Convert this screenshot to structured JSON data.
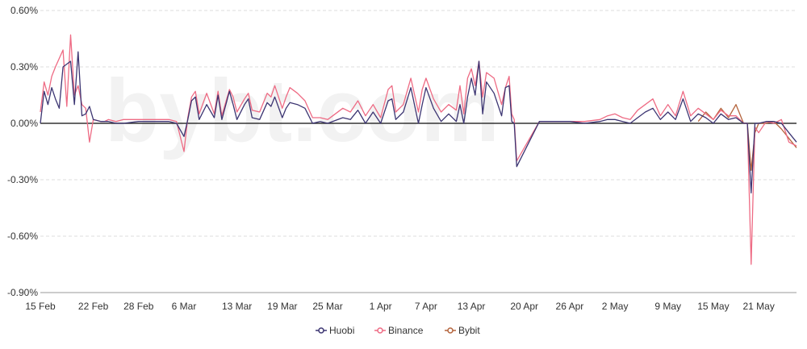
{
  "colors": {
    "Huobi": "#3c3572",
    "Binance": "#ee6b84",
    "Bybit": "#b4643c",
    "grid": "#dddddd",
    "zero_line": "#333333"
  },
  "watermark": "bybt.com",
  "chart_data": {
    "type": "line",
    "title": "",
    "xlabel": "",
    "ylabel": "",
    "ylim": [
      -0.9,
      0.6
    ],
    "yticks": [
      0.6,
      0.3,
      0.0,
      -0.3,
      -0.6,
      -0.9
    ],
    "ytick_labels": [
      "0.60%",
      "0.30%",
      "0.00%",
      "-0.30%",
      "-0.60%",
      "-0.90%"
    ],
    "xlim": [
      "2021-02-15",
      "2021-05-26"
    ],
    "xtick_labels": [
      "15 Feb",
      "22 Feb",
      "28 Feb",
      "6 Mar",
      "13 Mar",
      "19 Mar",
      "25 Mar",
      "1 Apr",
      "7 Apr",
      "13 Apr",
      "20 Apr",
      "26 Apr",
      "2 May",
      "9 May",
      "15 May",
      "21 May"
    ],
    "xtick_dates": [
      "2021-02-15",
      "2021-02-22",
      "2021-02-28",
      "2021-03-06",
      "2021-03-13",
      "2021-03-19",
      "2021-03-25",
      "2021-04-01",
      "2021-04-07",
      "2021-04-13",
      "2021-04-20",
      "2021-04-26",
      "2021-05-02",
      "2021-05-09",
      "2021-05-15",
      "2021-05-21"
    ],
    "grid": true,
    "legend_position": "bottom-center",
    "series": [
      {
        "name": "Huobi",
        "x": [
          "2021-02-15",
          "2021-02-15",
          "2021-02-16",
          "2021-02-16",
          "2021-02-17",
          "2021-02-17",
          "2021-02-18",
          "2021-02-19",
          "2021-02-19",
          "2021-02-20",
          "2021-02-20",
          "2021-02-21",
          "2021-02-21",
          "2021-02-22",
          "2021-02-23",
          "2021-02-23",
          "2021-02-24",
          "2021-02-25",
          "2021-02-26",
          "2021-02-28",
          "2021-03-02",
          "2021-03-04",
          "2021-03-05",
          "2021-03-06",
          "2021-03-06",
          "2021-03-07",
          "2021-03-07",
          "2021-03-08",
          "2021-03-09",
          "2021-03-10",
          "2021-03-10",
          "2021-03-11",
          "2021-03-12",
          "2021-03-12",
          "2021-03-13",
          "2021-03-14",
          "2021-03-14",
          "2021-03-15",
          "2021-03-16",
          "2021-03-17",
          "2021-03-17",
          "2021-03-18",
          "2021-03-19",
          "2021-03-19",
          "2021-03-20",
          "2021-03-21",
          "2021-03-22",
          "2021-03-23",
          "2021-03-24",
          "2021-03-25",
          "2021-03-27",
          "2021-03-28",
          "2021-03-29",
          "2021-03-30",
          "2021-03-31",
          "2021-04-01",
          "2021-04-02",
          "2021-04-02",
          "2021-04-03",
          "2021-04-04",
          "2021-04-05",
          "2021-04-06",
          "2021-04-06",
          "2021-04-07",
          "2021-04-08",
          "2021-04-09",
          "2021-04-10",
          "2021-04-11",
          "2021-04-11",
          "2021-04-12",
          "2021-04-12",
          "2021-04-13",
          "2021-04-13",
          "2021-04-14",
          "2021-04-14",
          "2021-04-15",
          "2021-04-16",
          "2021-04-17",
          "2021-04-17",
          "2021-04-18",
          "2021-04-18",
          "2021-04-18",
          "2021-04-19",
          "2021-04-22",
          "2021-04-26",
          "2021-04-28",
          "2021-04-30",
          "2021-05-01",
          "2021-05-02",
          "2021-05-03",
          "2021-05-04",
          "2021-05-05",
          "2021-05-06",
          "2021-05-07",
          "2021-05-08",
          "2021-05-09",
          "2021-05-10",
          "2021-05-11",
          "2021-05-12",
          "2021-05-13",
          "2021-05-14",
          "2021-05-15",
          "2021-05-16",
          "2021-05-17",
          "2021-05-18",
          "2021-05-19",
          "2021-05-19",
          "2021-05-20",
          "2021-05-20",
          "2021-05-21",
          "2021-05-22",
          "2021-05-23",
          "2021-05-24",
          "2021-05-25",
          "2021-05-26"
        ],
        "values": [
          0.0,
          0.17,
          0.1,
          0.19,
          0.13,
          0.08,
          0.3,
          0.33,
          0.1,
          0.38,
          0.04,
          0.05,
          0.09,
          0.02,
          0.01,
          0.01,
          0.01,
          0.0,
          0.0,
          0.01,
          0.01,
          0.01,
          0.0,
          -0.07,
          0.02,
          0.12,
          0.14,
          0.02,
          0.1,
          0.03,
          0.15,
          0.02,
          0.17,
          0.1,
          0.02,
          0.1,
          0.13,
          0.03,
          0.02,
          0.11,
          0.09,
          0.14,
          0.03,
          0.08,
          0.11,
          0.1,
          0.08,
          0.0,
          0.01,
          0.0,
          0.03,
          0.02,
          0.07,
          0.0,
          0.06,
          0.0,
          0.12,
          0.13,
          0.02,
          0.06,
          0.19,
          0.0,
          0.1,
          0.19,
          0.08,
          0.01,
          0.05,
          0.01,
          0.1,
          0.0,
          0.14,
          0.24,
          0.15,
          0.33,
          0.05,
          0.22,
          0.16,
          0.04,
          0.19,
          0.2,
          0.01,
          0.0,
          -0.23,
          0.01,
          0.01,
          0.0,
          0.01,
          0.02,
          0.02,
          0.01,
          0.0,
          0.03,
          0.06,
          0.08,
          0.02,
          0.06,
          0.02,
          0.13,
          0.01,
          0.05,
          0.03,
          0.0,
          0.05,
          0.02,
          0.03,
          0.0,
          0.0,
          -0.37,
          0.0,
          0.0,
          0.01,
          0.01,
          0.0,
          -0.05,
          -0.1
        ]
      },
      {
        "name": "Binance",
        "x": [
          "2021-02-15",
          "2021-02-15",
          "2021-02-16",
          "2021-02-16",
          "2021-02-17",
          "2021-02-18",
          "2021-02-18",
          "2021-02-19",
          "2021-02-19",
          "2021-02-20",
          "2021-02-20",
          "2021-02-21",
          "2021-02-21",
          "2021-02-22",
          "2021-02-23",
          "2021-02-23",
          "2021-02-24",
          "2021-02-25",
          "2021-02-26",
          "2021-02-28",
          "2021-03-02",
          "2021-03-04",
          "2021-03-05",
          "2021-03-06",
          "2021-03-06",
          "2021-03-07",
          "2021-03-07",
          "2021-03-08",
          "2021-03-09",
          "2021-03-10",
          "2021-03-10",
          "2021-03-11",
          "2021-03-12",
          "2021-03-12",
          "2021-03-13",
          "2021-03-14",
          "2021-03-14",
          "2021-03-15",
          "2021-03-16",
          "2021-03-17",
          "2021-03-17",
          "2021-03-18",
          "2021-03-19",
          "2021-03-19",
          "2021-03-20",
          "2021-03-21",
          "2021-03-22",
          "2021-03-23",
          "2021-03-24",
          "2021-03-25",
          "2021-03-27",
          "2021-03-28",
          "2021-03-29",
          "2021-03-30",
          "2021-03-31",
          "2021-04-01",
          "2021-04-02",
          "2021-04-02",
          "2021-04-03",
          "2021-04-04",
          "2021-04-05",
          "2021-04-06",
          "2021-04-06",
          "2021-04-07",
          "2021-04-08",
          "2021-04-09",
          "2021-04-10",
          "2021-04-11",
          "2021-04-11",
          "2021-04-12",
          "2021-04-12",
          "2021-04-13",
          "2021-04-13",
          "2021-04-14",
          "2021-04-14",
          "2021-04-15",
          "2021-04-16",
          "2021-04-17",
          "2021-04-17",
          "2021-04-18",
          "2021-04-18",
          "2021-04-18",
          "2021-04-19",
          "2021-04-22",
          "2021-04-26",
          "2021-04-28",
          "2021-04-30",
          "2021-05-01",
          "2021-05-02",
          "2021-05-03",
          "2021-05-04",
          "2021-05-05",
          "2021-05-06",
          "2021-05-07",
          "2021-05-08",
          "2021-05-09",
          "2021-05-10",
          "2021-05-11",
          "2021-05-12",
          "2021-05-13",
          "2021-05-14",
          "2021-05-15",
          "2021-05-16",
          "2021-05-17",
          "2021-05-18",
          "2021-05-19",
          "2021-05-19",
          "2021-05-20",
          "2021-05-20",
          "2021-05-21",
          "2021-05-22",
          "2021-05-23",
          "2021-05-24",
          "2021-05-25",
          "2021-05-26"
        ],
        "values": [
          0.06,
          0.22,
          0.15,
          0.25,
          0.3,
          0.39,
          0.09,
          0.47,
          0.15,
          0.2,
          0.1,
          0.08,
          -0.1,
          0.02,
          0.01,
          0.01,
          0.02,
          0.01,
          0.02,
          0.02,
          0.02,
          0.02,
          0.01,
          -0.15,
          0.03,
          0.14,
          0.17,
          0.05,
          0.16,
          0.05,
          0.17,
          0.04,
          0.18,
          0.14,
          0.06,
          0.13,
          0.16,
          0.07,
          0.06,
          0.16,
          0.14,
          0.2,
          0.08,
          0.14,
          0.19,
          0.16,
          0.12,
          0.03,
          0.03,
          0.02,
          0.08,
          0.06,
          0.12,
          0.04,
          0.1,
          0.03,
          0.18,
          0.2,
          0.06,
          0.1,
          0.24,
          0.06,
          0.18,
          0.24,
          0.13,
          0.06,
          0.1,
          0.07,
          0.2,
          0.05,
          0.24,
          0.29,
          0.2,
          0.33,
          0.14,
          0.27,
          0.24,
          0.1,
          0.19,
          0.25,
          0.05,
          0.02,
          -0.2,
          0.01,
          0.01,
          0.01,
          0.02,
          0.04,
          0.05,
          0.03,
          0.02,
          0.07,
          0.1,
          0.13,
          0.04,
          0.1,
          0.04,
          0.17,
          0.04,
          0.08,
          0.05,
          0.02,
          0.07,
          0.04,
          0.04,
          0.0,
          0.0,
          -0.75,
          -0.02,
          -0.05,
          0.01,
          0.0,
          0.02,
          -0.1,
          -0.12
        ]
      },
      {
        "name": "Bybit",
        "x": [
          "2021-05-13",
          "2021-05-14",
          "2021-05-15",
          "2021-05-16",
          "2021-05-17",
          "2021-05-18",
          "2021-05-19",
          "2021-05-19",
          "2021-05-20",
          "2021-05-20",
          "2021-05-21",
          "2021-05-22",
          "2021-05-23",
          "2021-05-24",
          "2021-05-25",
          "2021-05-26"
        ],
        "values": [
          0.01,
          0.06,
          0.02,
          0.08,
          0.03,
          0.1,
          0.0,
          0.0,
          -0.25,
          -0.05,
          0.0,
          0.0,
          0.01,
          -0.03,
          -0.08,
          -0.13
        ]
      }
    ]
  }
}
